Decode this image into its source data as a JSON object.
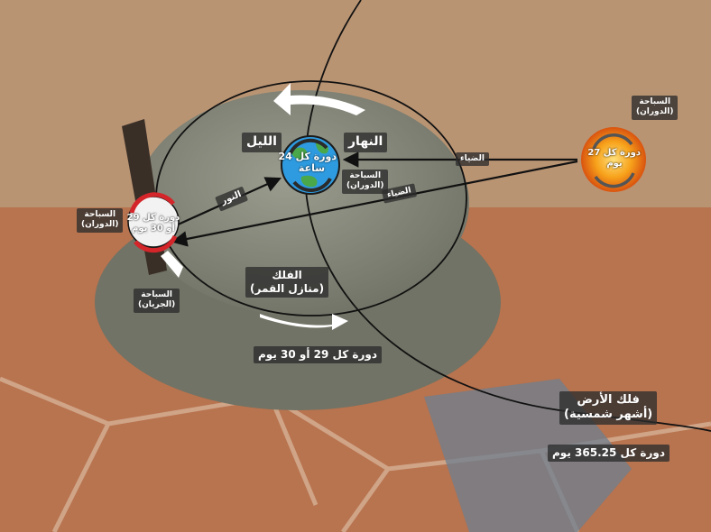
{
  "labels": {
    "night": "الليل",
    "day": "النهار",
    "earth_period_line1": "دورة كل 24",
    "earth_period_line2": "ساعة",
    "earth_spin_line1": "السباحة",
    "earth_spin_line2": "(الدوران)",
    "sun_spin_line1": "السباحة",
    "sun_spin_line2": "(الدوران)",
    "sun_period_line1": "دورة كل 27",
    "sun_period_line2": "يوم",
    "light_top": "الضياء",
    "light_bottom": "الضياء",
    "moonlight": "النور",
    "moon_spin_line1": "السباحة",
    "moon_spin_line2": "(الدوران)",
    "moon_period_line1": "دورة كل 29",
    "moon_period_line2": "أو 30 يوم",
    "moon_flow_line1": "السباحة",
    "moon_flow_line2": "(الجريان)",
    "moon_orbit_line1": "الفلك",
    "moon_orbit_line2": "(منازل القمر)",
    "moon_orbit_period": "دورة كل 29 أو 30 يوم",
    "earth_orbit_line1": "فلك الأرض",
    "earth_orbit_line2": "(أشهر شمسية)",
    "earth_orbit_period": "دورة كل 365.25 يوم"
  },
  "colors": {
    "earth": "#2e9be0",
    "earth_land": "#4aa84a",
    "sun": "#f7a21b",
    "moon_marker": "#d4262a",
    "label_bg": "#2d2d2d",
    "orbit_line": "#111111"
  },
  "icons": [
    "earth-icon",
    "sun-icon",
    "moon-icon",
    "rotation-arrows-icon"
  ]
}
